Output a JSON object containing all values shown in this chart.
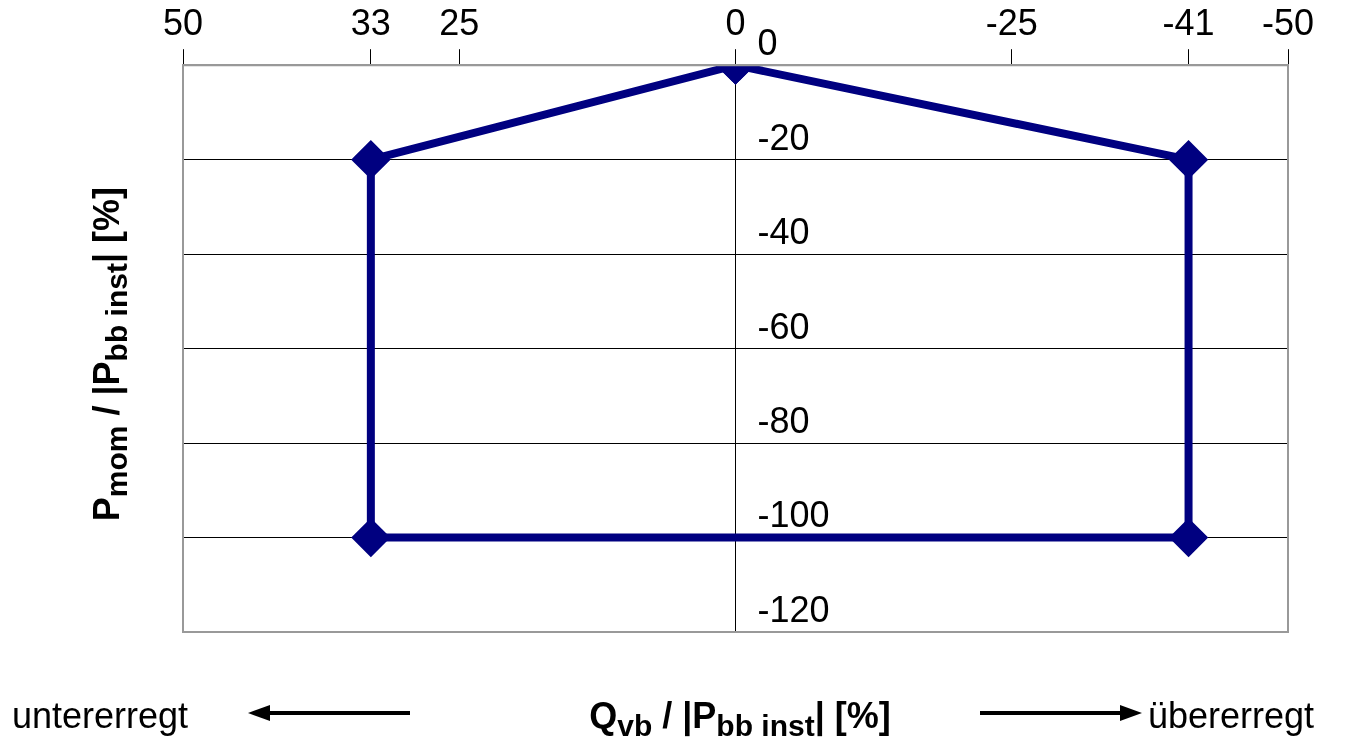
{
  "chart_data": {
    "type": "scatter",
    "xlabel": "Q$_{vb}$ / |P$_{bb inst}$| [%]",
    "ylabel": "P$_{mom}$ / |P$_{bb inst}$| [%]",
    "annotations": [
      "untererregt",
      "übererregt"
    ],
    "series": [
      {
        "color": "#000080",
        "x": [
          0,
          -41,
          -41,
          33,
          33,
          0
        ],
        "values": [
          0,
          -20,
          -100,
          -100,
          -20,
          0
        ]
      }
    ],
    "xlim": [
      50,
      -50
    ],
    "xticks": [
      50,
      33,
      25,
      0,
      -25,
      -41,
      -50
    ],
    "ylim": [
      -120,
      0
    ],
    "yticks": [
      0,
      -20,
      -40,
      -60,
      -80,
      -100,
      -120
    ],
    "grid": "y",
    "legend": false,
    "marker": "diamond",
    "line_style": "solid"
  }
}
